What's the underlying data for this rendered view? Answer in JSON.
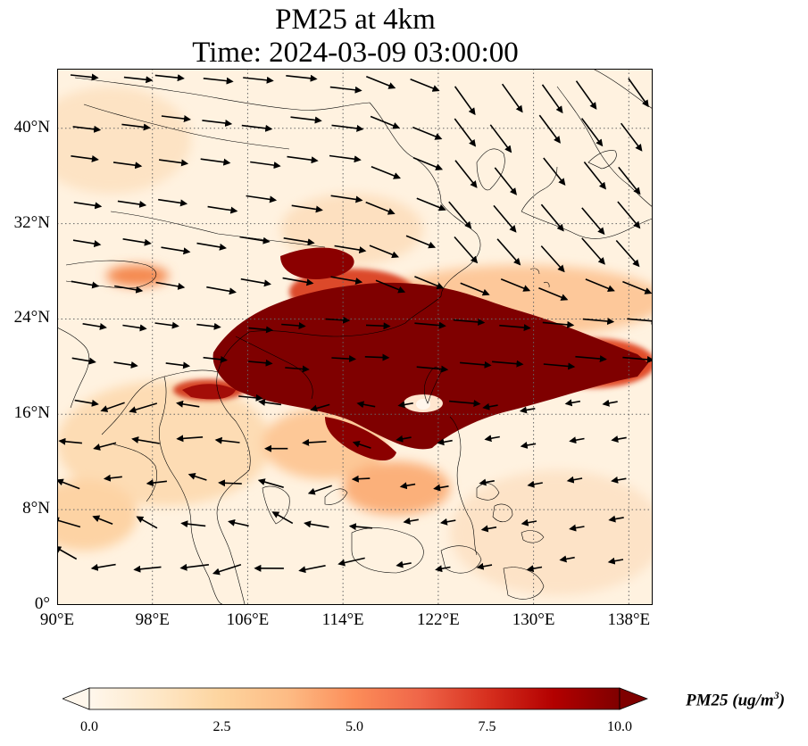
{
  "title": {
    "line1": "PM25 at 4km",
    "line2": "Time: 2024-03-09 03:00:00"
  },
  "map": {
    "projection": "plate-carree",
    "lon_range": [
      90,
      140
    ],
    "lat_range": [
      0,
      45
    ],
    "gridlines": true,
    "grid_style": "dotted",
    "lon_ticks": [
      {
        "value": 90,
        "label": "90°E"
      },
      {
        "value": 98,
        "label": "98°E"
      },
      {
        "value": 106,
        "label": "106°E"
      },
      {
        "value": 114,
        "label": "114°E"
      },
      {
        "value": 122,
        "label": "122°E"
      },
      {
        "value": 130,
        "label": "130°E"
      },
      {
        "value": 138,
        "label": "138°E"
      }
    ],
    "lat_ticks": [
      {
        "value": 0,
        "label": "0°"
      },
      {
        "value": 8,
        "label": "8°N"
      },
      {
        "value": 16,
        "label": "16°N"
      },
      {
        "value": 24,
        "label": "24°N"
      },
      {
        "value": 32,
        "label": "32°N"
      },
      {
        "value": 40,
        "label": "40°N"
      }
    ],
    "field": "PM25",
    "vectors": "wind arrows"
  },
  "colorbar": {
    "label_main": "PM25 (ug/m",
    "label_sup": "3",
    "label_end": ")",
    "min": 0.0,
    "max": 10.0,
    "extend": "both",
    "colormap": "OrRd",
    "ticks": [
      "0.0",
      "2.5",
      "5.0",
      "7.5",
      "10.0"
    ],
    "colors": [
      "#fff7ec",
      "#fee8c8",
      "#fdd49e",
      "#fdbb84",
      "#fc8d59",
      "#ef6548",
      "#d7301f",
      "#b30000",
      "#7f0000"
    ]
  }
}
